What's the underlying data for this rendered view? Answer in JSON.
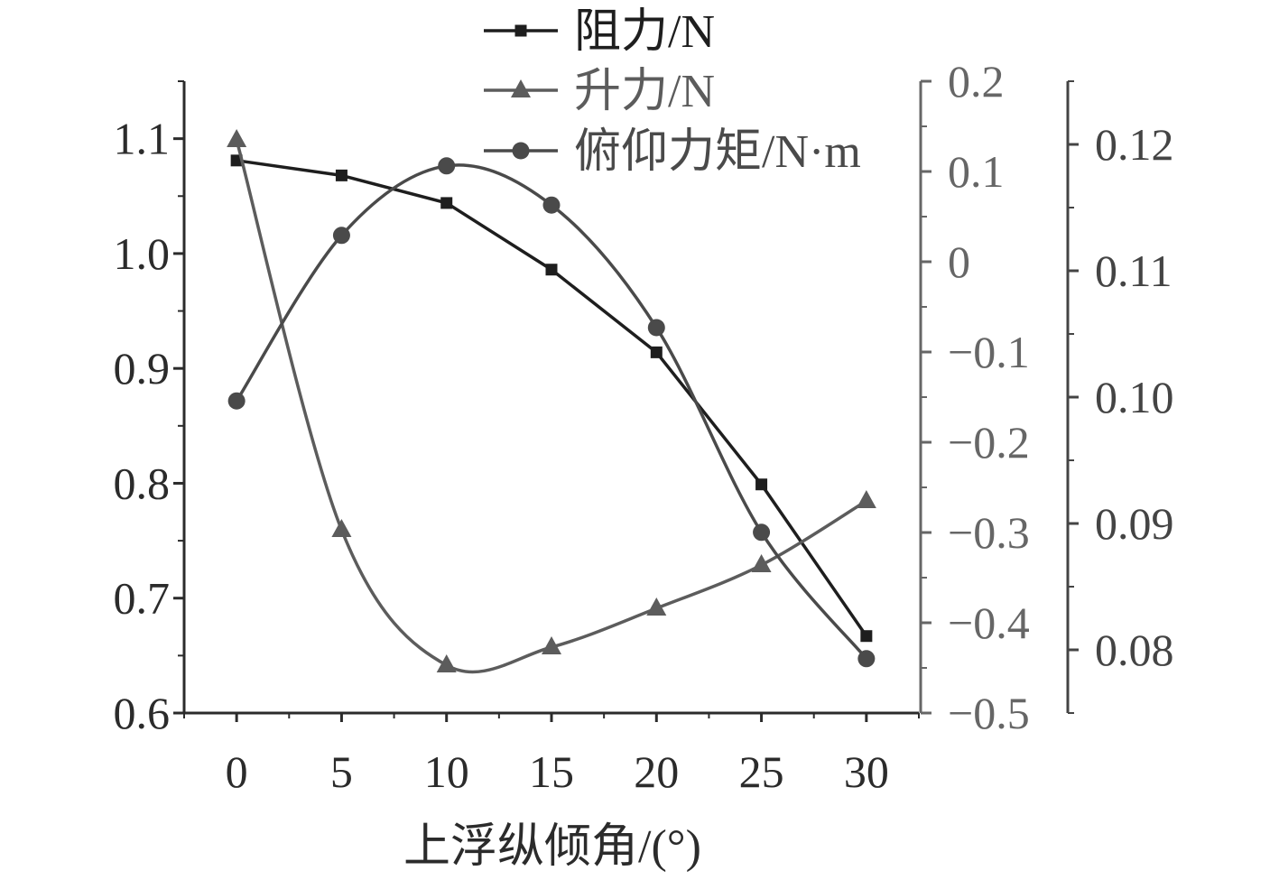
{
  "chart_data": {
    "type": "line",
    "xlabel": "上浮纵倾角/(°)",
    "x": [
      0,
      5,
      10,
      15,
      20,
      25,
      30
    ],
    "x_ticks": [
      "0",
      "5",
      "10",
      "15",
      "20",
      "25",
      "30"
    ],
    "xlim": [
      -2.5,
      32.5
    ],
    "grid": false,
    "legend_position": "top-center",
    "axes": [
      {
        "id": "left",
        "ylim": [
          0.6,
          1.15
        ],
        "ticks": [
          0.6,
          0.7,
          0.8,
          0.9,
          1.0,
          1.1
        ],
        "tick_labels": [
          "0.6",
          "0.7",
          "0.8",
          "0.9",
          "1.0",
          "1.1"
        ],
        "color": "#2b2b2b"
      },
      {
        "id": "right1",
        "ylim": [
          -0.5,
          0.2
        ],
        "ticks": [
          -0.5,
          -0.4,
          -0.3,
          -0.2,
          -0.1,
          0,
          0.1,
          0.2
        ],
        "tick_labels": [
          "−0.5",
          "−0.4",
          "−0.3",
          "−0.2",
          "−0.1",
          "0",
          "0.1",
          "0.2"
        ],
        "color": "#666666"
      },
      {
        "id": "right2",
        "ylim": [
          0.075,
          0.125
        ],
        "ticks": [
          0.08,
          0.09,
          0.1,
          0.11,
          0.12
        ],
        "tick_labels": [
          "0.08",
          "0.09",
          "0.10",
          "0.11",
          "0.12"
        ],
        "color": "#444444"
      }
    ],
    "series": [
      {
        "name": "阻力/N",
        "axis": "left",
        "marker": "square",
        "color": "#1e1e1e",
        "values": [
          1.081,
          1.068,
          1.044,
          0.986,
          0.914,
          0.799,
          0.667
        ]
      },
      {
        "name": "升力/N",
        "axis": "right1",
        "marker": "triangle",
        "color": "#5c5c5c",
        "values": [
          0.135,
          -0.297,
          -0.447,
          -0.427,
          -0.384,
          -0.336,
          -0.265
        ]
      },
      {
        "name": "俯仰力矩/N·m",
        "axis": "right2",
        "marker": "circle",
        "color": "#4a4a4a",
        "values": [
          0.0997,
          0.1128,
          0.1183,
          0.1152,
          0.1055,
          0.0893,
          0.0793
        ]
      }
    ]
  }
}
